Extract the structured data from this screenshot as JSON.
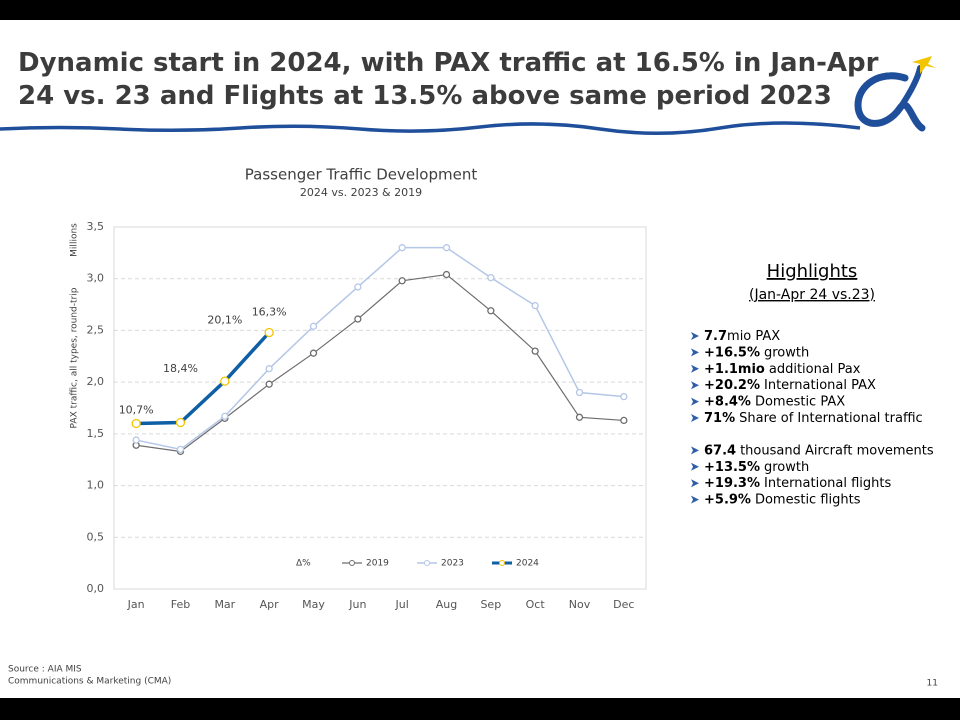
{
  "header": {
    "title": [
      "Dynamic start in 2024, with PAX traffic at 16.5% in Jan-Apr",
      "24 vs. 23 and Flights at 13.5% above same period 2023"
    ]
  },
  "chart_data": {
    "type": "line",
    "title": "Passenger Traffic Development",
    "subtitle": "2024 vs. 2023 & 2019",
    "ylabel": "PAX traffic, all types, round-trip",
    "yunit": "Millions",
    "categories": [
      "Jan",
      "Feb",
      "Mar",
      "Apr",
      "May",
      "Jun",
      "Jul",
      "Aug",
      "Sep",
      "Oct",
      "Nov",
      "Dec"
    ],
    "ylim": [
      0,
      3.5
    ],
    "yticks": [
      {
        "value": 0,
        "label": "0,0"
      },
      {
        "value": 0.5,
        "label": "0,5"
      },
      {
        "value": 1,
        "label": "1,0"
      },
      {
        "value": 1.5,
        "label": "1,5"
      },
      {
        "value": 2,
        "label": "2,0"
      },
      {
        "value": 2.5,
        "label": "2,5"
      },
      {
        "value": 3,
        "label": "3,0"
      },
      {
        "value": 3.5,
        "label": "3,5"
      }
    ],
    "grid": true,
    "legend": "bottom",
    "series": [
      {
        "name": "Δ%",
        "labels_on": "2024",
        "values": [
          10.7,
          18.4,
          20.1,
          16.3,
          null,
          null,
          null,
          null,
          null,
          null,
          null,
          null
        ],
        "value_labels": [
          "10,7%",
          "18,4%",
          "20,1%",
          "16,3%",
          null,
          null,
          null,
          null,
          null,
          null,
          null,
          null
        ]
      },
      {
        "name": "2019",
        "color": "#6d6d6d",
        "marker_color": "#6d6d6d",
        "line_width": 1.2,
        "values": [
          1.39,
          1.33,
          1.65,
          1.98,
          2.28,
          2.61,
          2.98,
          3.04,
          2.69,
          2.3,
          1.66,
          1.63
        ]
      },
      {
        "name": "2023",
        "color": "#b4c7e7",
        "marker_color": "#b4c7e7",
        "line_width": 1.5,
        "values": [
          1.44,
          1.35,
          1.67,
          2.13,
          2.54,
          2.92,
          3.3,
          3.3,
          3.01,
          2.74,
          1.9,
          1.86
        ]
      },
      {
        "name": "2024",
        "color": "#0e5fa6",
        "marker_color": "#f2c500",
        "line_width": 3.5,
        "values": [
          1.6,
          1.61,
          2.01,
          2.48,
          null,
          null,
          null,
          null,
          null,
          null,
          null,
          null
        ]
      }
    ]
  },
  "highlights": {
    "title": "Highlights",
    "subtitle": "(Jan-Apr 24 vs.23)",
    "groups": [
      [
        {
          "bold": "7.7",
          "text": "mio PAX"
        },
        {
          "bold": "+16.5%",
          "text": "growth"
        },
        {
          "bold": "+1.1mio",
          "text": "additional Pax"
        },
        {
          "bold": "+20.2%",
          "text": "International PAX"
        },
        {
          "bold": "+8.4%",
          "text": "Domestic PAX"
        },
        {
          "bold": "71%",
          "text": "Share of International traffic"
        }
      ],
      [
        {
          "bold": "67.4",
          "text": "thousand Aircraft movements"
        },
        {
          "bold": "+13.5%",
          "text": "growth"
        },
        {
          "bold": "+19.3%",
          "text": "International flights"
        },
        {
          "bold": "+5.9%",
          "text": "Domestic flights"
        }
      ]
    ]
  },
  "footer": {
    "source": "Source : AIA MIS",
    "department": "Communications & Marketing (CMA)",
    "page": "11"
  }
}
